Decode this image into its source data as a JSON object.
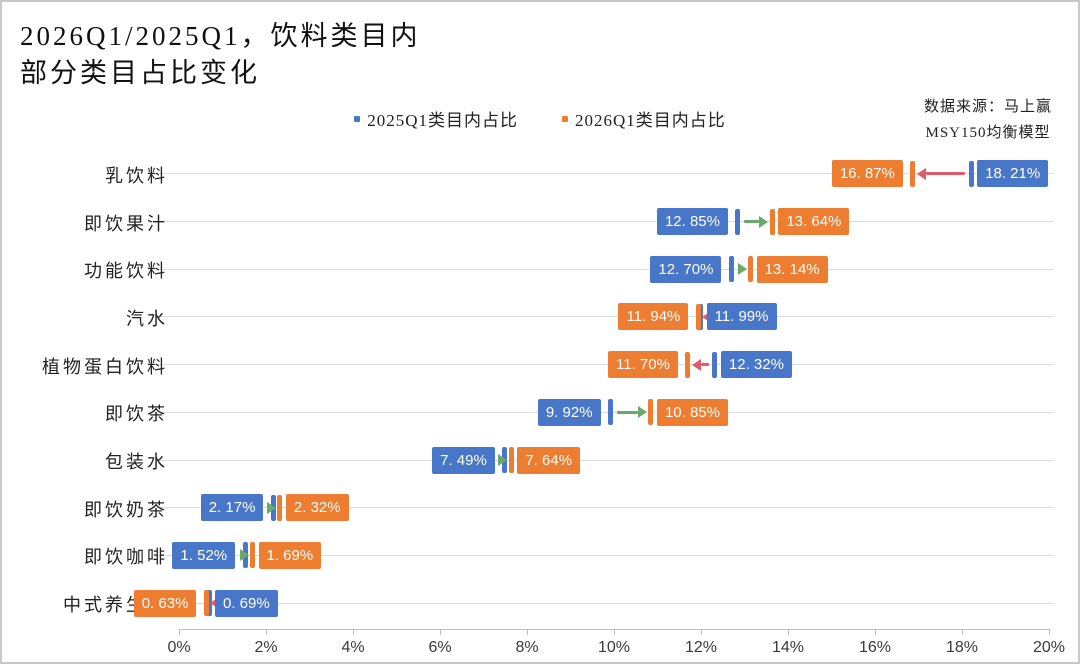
{
  "title": {
    "line1": "2026Q1/2025Q1，饮料类目内",
    "line2": "部分类目占比变化"
  },
  "legend": [
    {
      "label": "2025Q1类目内占比",
      "color": "#4876C8"
    },
    {
      "label": "2026Q1类目内占比",
      "color": "#ED7D31"
    }
  ],
  "source": {
    "line1": "数据来源：马上赢",
    "line2": "MSY150均衡模型"
  },
  "chart_data": {
    "type": "dumbbell-arrow",
    "title": "2026Q1/2025Q1，饮料类目内部分类目占比变化",
    "categories": [
      "乳饮料",
      "即饮果汁",
      "功能饮料",
      "汽水",
      "植物蛋白饮料",
      "即饮茶",
      "包装水",
      "即饮奶茶",
      "即饮咖啡",
      "中式养生水"
    ],
    "series": [
      {
        "name": "2025Q1类目内占比",
        "color": "#4876C8",
        "values": [
          18.21,
          12.85,
          12.7,
          11.99,
          12.32,
          9.92,
          7.49,
          2.17,
          1.52,
          0.69
        ],
        "labels": [
          "18. 21%",
          "12. 85%",
          "12. 70%",
          "11. 99%",
          "12. 32%",
          "9. 92%",
          "7. 49%",
          "2. 17%",
          "1. 52%",
          "0. 69%"
        ]
      },
      {
        "name": "2026Q1类目内占比",
        "color": "#ED7D31",
        "values": [
          16.87,
          13.64,
          13.14,
          11.94,
          11.7,
          10.85,
          7.64,
          2.32,
          1.69,
          0.63
        ],
        "labels": [
          "16. 87%",
          "13. 64%",
          "13. 14%",
          "11. 94%",
          "11. 70%",
          "10. 85%",
          "7. 64%",
          "2. 32%",
          "1. 69%",
          "0. 63%"
        ]
      }
    ],
    "x_ticks": [
      "0%",
      "2%",
      "4%",
      "6%",
      "8%",
      "10%",
      "12%",
      "14%",
      "16%",
      "18%",
      "20%"
    ],
    "xlim": [
      0,
      20
    ],
    "grid": true,
    "legend_position": "top",
    "increase_color": "#69A96B",
    "decrease_color": "#E05A6A"
  }
}
